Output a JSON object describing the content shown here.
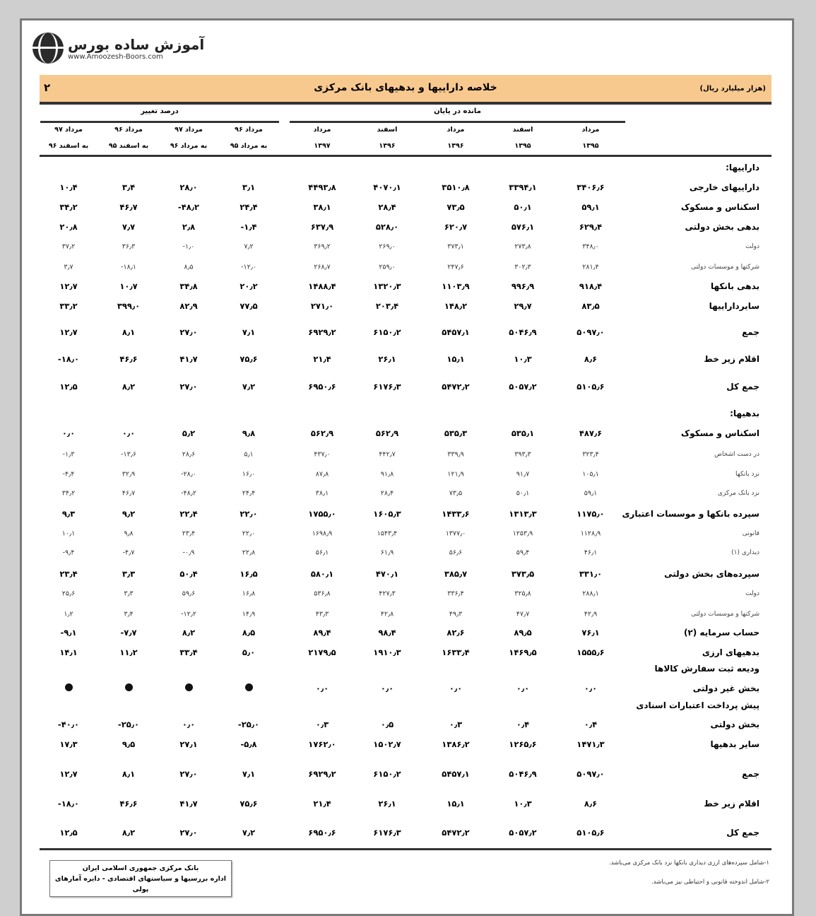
{
  "logo": {
    "name": "آموزش ساده بورس",
    "url": "www.Amoozesh-Boors.com"
  },
  "header": {
    "title": "خلاصه دارایيها و بدهيهای بانک مرکزی",
    "table_number": "۲",
    "unit": "(هزار میلیارد ریال)"
  },
  "groups": {
    "balance": "مانده در پایان",
    "change": "درصد تغییر"
  },
  "columns": [
    {
      "l1": "مرداد",
      "l2": "۱۳۹۵"
    },
    {
      "l1": "اسفند",
      "l2": "۱۳۹۵"
    },
    {
      "l1": "مرداد",
      "l2": "۱۳۹۶"
    },
    {
      "l1": "اسفند",
      "l2": "۱۳۹۶"
    },
    {
      "l1": "مرداد",
      "l2": "۱۳۹۷"
    },
    {
      "l1": "مرداد ۹۶",
      "l2": "به مرداد ۹۵"
    },
    {
      "l1": "مرداد ۹۷",
      "l2": "به مرداد ۹۶"
    },
    {
      "l1": "مرداد ۹۶",
      "l2": "به اسفند ۹۵"
    },
    {
      "l1": "مرداد ۹۷",
      "l2": "به اسفند ۹۶"
    }
  ],
  "rows": [
    {
      "label": "دارایيها:",
      "kind": "sec",
      "values": []
    },
    {
      "label": "دارایيهای خارجی",
      "kind": "main",
      "values": [
        "۳۴۰۶٫۶",
        "۳۳۹۴٫۱",
        "۳۵۱۰٫۸",
        "۴۰۷۰٫۱",
        "۴۴۹۳٫۸",
        "۳٫۱",
        "۲۸٫۰",
        "۳٫۴",
        "۱۰٫۴"
      ]
    },
    {
      "label": "اسکناس و مسکوک",
      "kind": "main",
      "values": [
        "۵۹٫۱",
        "۵۰٫۱",
        "۷۳٫۵",
        "۲۸٫۴",
        "۳۸٫۱",
        "۲۴٫۴",
        "-۴۸٫۲",
        "۴۶٫۷",
        "۳۴٫۲"
      ]
    },
    {
      "label": "بدهی بخش دولتی",
      "kind": "main",
      "values": [
        "۶۲۹٫۴",
        "۵۷۶٫۱",
        "۶۲۰٫۷",
        "۵۲۸٫۰",
        "۶۳۷٫۹",
        "-۱٫۴",
        "۲٫۸",
        "۷٫۷",
        "۲۰٫۸"
      ]
    },
    {
      "label": "دولت",
      "kind": "sub",
      "values": [
        "۳۴۸٫۰",
        "۲۷۳٫۸",
        "۳۷۳٫۱",
        "۲۶۹٫۰",
        "۳۶۹٫۲",
        "۷٫۲",
        "-۱٫۰",
        "۳۶٫۳",
        "۳۷٫۲"
      ]
    },
    {
      "label": "شرکتها و موسسات دولتی",
      "kind": "sub",
      "values": [
        "۲۸۱٫۴",
        "۳۰۲٫۳",
        "۲۴۷٫۶",
        "۲۵۹٫۰",
        "۲۶۸٫۷",
        "-۱۲٫۰",
        "۸٫۵",
        "-۱۸٫۱",
        "۳٫۷"
      ]
    },
    {
      "label": "بدهی بانکها",
      "kind": "main",
      "values": [
        "۹۱۸٫۴",
        "۹۹۶٫۹",
        "۱۱۰۳٫۹",
        "۱۳۲۰٫۳",
        "۱۴۸۸٫۴",
        "۲۰٫۲",
        "۳۴٫۸",
        "۱۰٫۷",
        "۱۲٫۷"
      ]
    },
    {
      "label": "سایردارایيها",
      "kind": "main",
      "values": [
        "۸۳٫۵",
        "۲۹٫۷",
        "۱۴۸٫۲",
        "۲۰۳٫۴",
        "۲۷۱٫۰",
        "۷۷٫۵",
        "۸۲٫۹",
        "۳۹۹٫۰",
        "۳۳٫۲"
      ]
    },
    {
      "label": "جمع",
      "kind": "main",
      "values": [
        "۵۰۹۷٫۰",
        "۵۰۴۶٫۹",
        "۵۴۵۷٫۱",
        "۶۱۵۰٫۲",
        "۶۹۲۹٫۲",
        "۷٫۱",
        "۲۷٫۰",
        "۸٫۱",
        "۱۲٫۷"
      ]
    },
    {
      "label": "اقلام زیر خط",
      "kind": "main",
      "values": [
        "۸٫۶",
        "۱۰٫۳",
        "۱۵٫۱",
        "۲۶٫۱",
        "۲۱٫۴",
        "۷۵٫۶",
        "۴۱٫۷",
        "۴۶٫۶",
        "-۱۸٫۰"
      ]
    },
    {
      "label": "جمع کل",
      "kind": "main",
      "values": [
        "۵۱۰۵٫۶",
        "۵۰۵۷٫۲",
        "۵۴۷۲٫۲",
        "۶۱۷۶٫۳",
        "۶۹۵۰٫۶",
        "۷٫۲",
        "۲۷٫۰",
        "۸٫۲",
        "۱۲٫۵"
      ]
    },
    {
      "label": "بدهيها:",
      "kind": "sec",
      "values": []
    },
    {
      "label": "اسکناس و مسکوک",
      "kind": "main",
      "values": [
        "۴۸۷٫۶",
        "۵۳۵٫۱",
        "۵۳۵٫۳",
        "۵۶۲٫۹",
        "۵۶۲٫۹",
        "۹٫۸",
        "۵٫۲",
        "۰٫۰",
        "۰٫۰"
      ]
    },
    {
      "label": "در دست اشخاص",
      "kind": "sub",
      "values": [
        "۳۲۳٫۴",
        "۳۹۳٫۳",
        "۳۳۹٫۹",
        "۴۴۲٫۷",
        "۴۳۷٫۰",
        "۵٫۱",
        "۲۸٫۶",
        "-۱۳٫۶",
        "-۱٫۳"
      ]
    },
    {
      "label": "نزد بانکها",
      "kind": "sub",
      "values": [
        "۱۰۵٫۱",
        "۹۱٫۷",
        "۱۲۱٫۹",
        "۹۱٫۸",
        "۸۷٫۸",
        "۱۶٫۰",
        "-۲۸٫۰",
        "۳۲٫۹",
        "-۴٫۴"
      ]
    },
    {
      "label": "نزد بانک مرکزی",
      "kind": "sub",
      "values": [
        "۵۹٫۱",
        "۵۰٫۱",
        "۷۳٫۵",
        "۲۸٫۴",
        "۳۸٫۱",
        "۲۴٫۴",
        "-۴۸٫۲",
        "۴۶٫۷",
        "۳۴٫۲"
      ]
    },
    {
      "label": "سپرده بانکها و موسسات اعتباری",
      "kind": "main",
      "values": [
        "۱۱۷۵٫۰",
        "۱۳۱۳٫۳",
        "۱۴۳۳٫۶",
        "۱۶۰۵٫۳",
        "۱۷۵۵٫۰",
        "۲۲٫۰",
        "۲۲٫۴",
        "۹٫۲",
        "۹٫۳"
      ]
    },
    {
      "label": "قانونی",
      "kind": "sub",
      "values": [
        "۱۱۲۸٫۹",
        "۱۲۵۳٫۹",
        "۱۳۷۷٫۰",
        "۱۵۴۳٫۴",
        "۱۶۹۸٫۹",
        "۲۲٫۰",
        "۲۳٫۴",
        "۹٫۸",
        "۱۰٫۱"
      ]
    },
    {
      "label": "دیداری (۱)",
      "kind": "sub",
      "values": [
        "۴۶٫۱",
        "۵۹٫۴",
        "۵۶٫۶",
        "۶۱٫۹",
        "۵۶٫۱",
        "۲۲٫۸",
        "-۰٫۹",
        "-۴٫۷",
        "-۹٫۴"
      ]
    },
    {
      "label": "سپرده‌های بخش دولتی",
      "kind": "main",
      "values": [
        "۳۳۱٫۰",
        "۳۷۳٫۵",
        "۳۸۵٫۷",
        "۴۷۰٫۱",
        "۵۸۰٫۱",
        "۱۶٫۵",
        "۵۰٫۴",
        "۳٫۳",
        "۲۳٫۴"
      ]
    },
    {
      "label": "دولت",
      "kind": "sub",
      "values": [
        "۲۸۸٫۱",
        "۳۲۵٫۸",
        "۳۳۶٫۴",
        "۴۲۷٫۳",
        "۵۳۶٫۸",
        "۱۶٫۸",
        "۵۹٫۶",
        "۳٫۳",
        "۲۵٫۶"
      ]
    },
    {
      "label": "شرکتها و موسسات دولتی",
      "kind": "sub",
      "values": [
        "۴۲٫۹",
        "۴۷٫۷",
        "۴۹٫۳",
        "۴۲٫۸",
        "۴۳٫۳",
        "۱۴٫۹",
        "-۱۲٫۲",
        "۳٫۴",
        "۱٫۲"
      ]
    },
    {
      "label": "حساب سرمایه (۲)",
      "kind": "main",
      "values": [
        "۷۶٫۱",
        "۸۹٫۵",
        "۸۲٫۶",
        "۹۸٫۴",
        "۸۹٫۴",
        "۸٫۵",
        "۸٫۲",
        "-۷٫۷",
        "-۹٫۱"
      ]
    },
    {
      "label": "بدهیهای ارزی",
      "kind": "main",
      "values": [
        "۱۵۵۵٫۶",
        "۱۴۶۹٫۵",
        "۱۶۳۳٫۴",
        "۱۹۱۰٫۳",
        "۲۱۷۹٫۵",
        "۵٫۰",
        "۳۳٫۴",
        "۱۱٫۲",
        "۱۴٫۱"
      ]
    },
    {
      "label": "ودیعه ثبت سفارش کالاها",
      "kind": "main",
      "values": []
    },
    {
      "label": "بخش غیر دولتی",
      "kind": "main",
      "values": [
        "۰٫۰",
        "۰٫۰",
        "۰٫۰",
        "۰٫۰",
        "۰٫۰",
        "●",
        "●",
        "●",
        "●"
      ]
    },
    {
      "label": "پیش پرداخت اعتبارات اسنادی",
      "kind": "main",
      "values": []
    },
    {
      "label": "بخش دولتی",
      "kind": "main",
      "values": [
        "۰٫۴",
        "۰٫۴",
        "۰٫۳",
        "۰٫۵",
        "۰٫۳",
        "-۲۵٫۰",
        "۰٫۰",
        "-۲۵٫۰",
        "-۴۰٫۰"
      ]
    },
    {
      "label": "سایر بدهیها",
      "kind": "main",
      "values": [
        "۱۴۷۱٫۳",
        "۱۲۶۵٫۶",
        "۱۳۸۶٫۲",
        "۱۵۰۲٫۷",
        "۱۷۶۲٫۰",
        "-۵٫۸",
        "۲۷٫۱",
        "۹٫۵",
        "۱۷٫۳"
      ]
    },
    {
      "label": "جمع",
      "kind": "main",
      "values": [
        "۵۰۹۷٫۰",
        "۵۰۴۶٫۹",
        "۵۴۵۷٫۱",
        "۶۱۵۰٫۲",
        "۶۹۲۹٫۲",
        "۷٫۱",
        "۲۷٫۰",
        "۸٫۱",
        "۱۲٫۷"
      ]
    },
    {
      "label": "اقلام زیر خط",
      "kind": "main",
      "values": [
        "۸٫۶",
        "۱۰٫۳",
        "۱۵٫۱",
        "۲۶٫۱",
        "۲۱٫۴",
        "۷۵٫۶",
        "۴۱٫۷",
        "۴۶٫۶",
        "-۱۸٫۰"
      ]
    },
    {
      "label": "جمع کل",
      "kind": "main",
      "values": [
        "۵۱۰۵٫۶",
        "۵۰۵۷٫۲",
        "۵۴۷۲٫۲",
        "۶۱۷۶٫۳",
        "۶۹۵۰٫۶",
        "۷٫۲",
        "۲۷٫۰",
        "۸٫۲",
        "۱۲٫۵"
      ]
    }
  ],
  "source": {
    "line1": "بانک مرکزی جمهوری اسلامی ایران",
    "line2": "اداره بررسیها و سیاستهای اقتصادی - دایره آمارهای پولی"
  },
  "footnotes": [
    "۱-شامل سپرده‌های ارزی دیداری بانکها نزد بانک مرکزی می‌باشد.",
    "۲-شامل اندوخته قانونی و احتیاطی نیز می‌باشد."
  ]
}
